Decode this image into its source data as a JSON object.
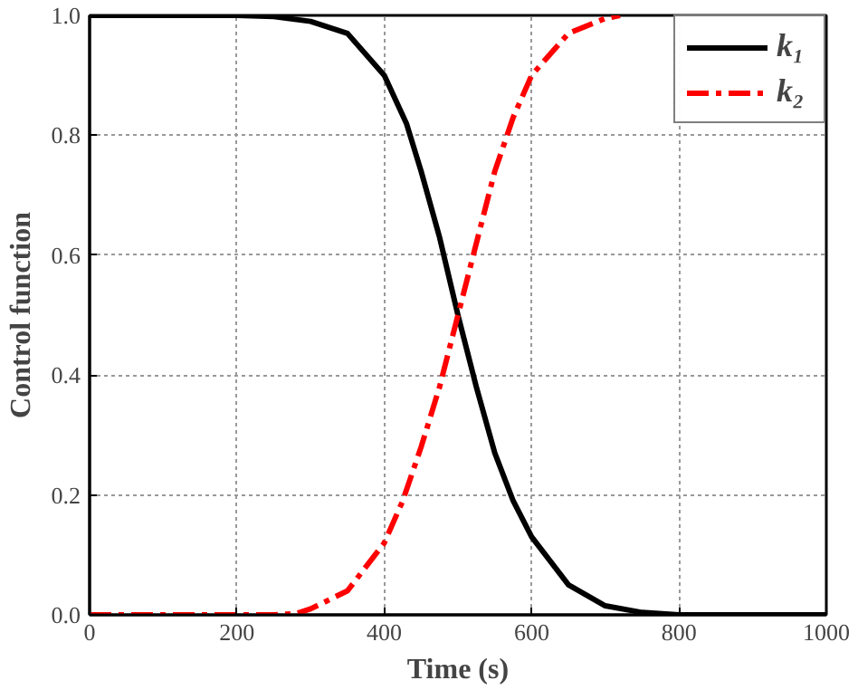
{
  "chart_data": {
    "type": "line",
    "xlabel": "Time (s)",
    "ylabel": "Control function",
    "xlim": [
      0,
      1000
    ],
    "ylim": [
      0,
      1.0
    ],
    "xticks": [
      0,
      200,
      400,
      600,
      800,
      1000
    ],
    "yticks": [
      {
        "value": 0,
        "label": "0.0"
      },
      {
        "value": 0.2,
        "label": "0.2"
      },
      {
        "value": 0.4,
        "label": "0.4"
      },
      {
        "value": 0.6,
        "label": "0.6"
      },
      {
        "value": 0.8,
        "label": "0.8"
      },
      {
        "value": 1.0,
        "label": "1.0"
      }
    ],
    "grid": true,
    "legend": "top right",
    "marker": "none",
    "series": [
      {
        "name": "k₁",
        "color": "#000000",
        "line_style": "solid",
        "x": [
          0,
          200,
          250,
          300,
          350,
          400,
          430,
          450,
          475,
          500,
          525,
          550,
          575,
          600,
          650,
          700,
          750,
          800,
          1000
        ],
        "values": [
          1.0,
          1.0,
          0.998,
          0.99,
          0.97,
          0.9,
          0.82,
          0.74,
          0.63,
          0.5,
          0.38,
          0.27,
          0.19,
          0.13,
          0.05,
          0.015,
          0.004,
          0.0,
          0.0
        ]
      },
      {
        "name": "k₂",
        "color": "#ff0000",
        "line_style": "dashdot",
        "x": [
          0,
          250,
          280,
          300,
          350,
          400,
          425,
          450,
          475,
          500,
          525,
          550,
          575,
          600,
          650,
          700,
          720
        ],
        "values": [
          0.0,
          0.0,
          0.002,
          0.01,
          0.04,
          0.12,
          0.19,
          0.28,
          0.38,
          0.5,
          0.62,
          0.74,
          0.83,
          0.9,
          0.97,
          0.995,
          1.0
        ]
      }
    ]
  }
}
